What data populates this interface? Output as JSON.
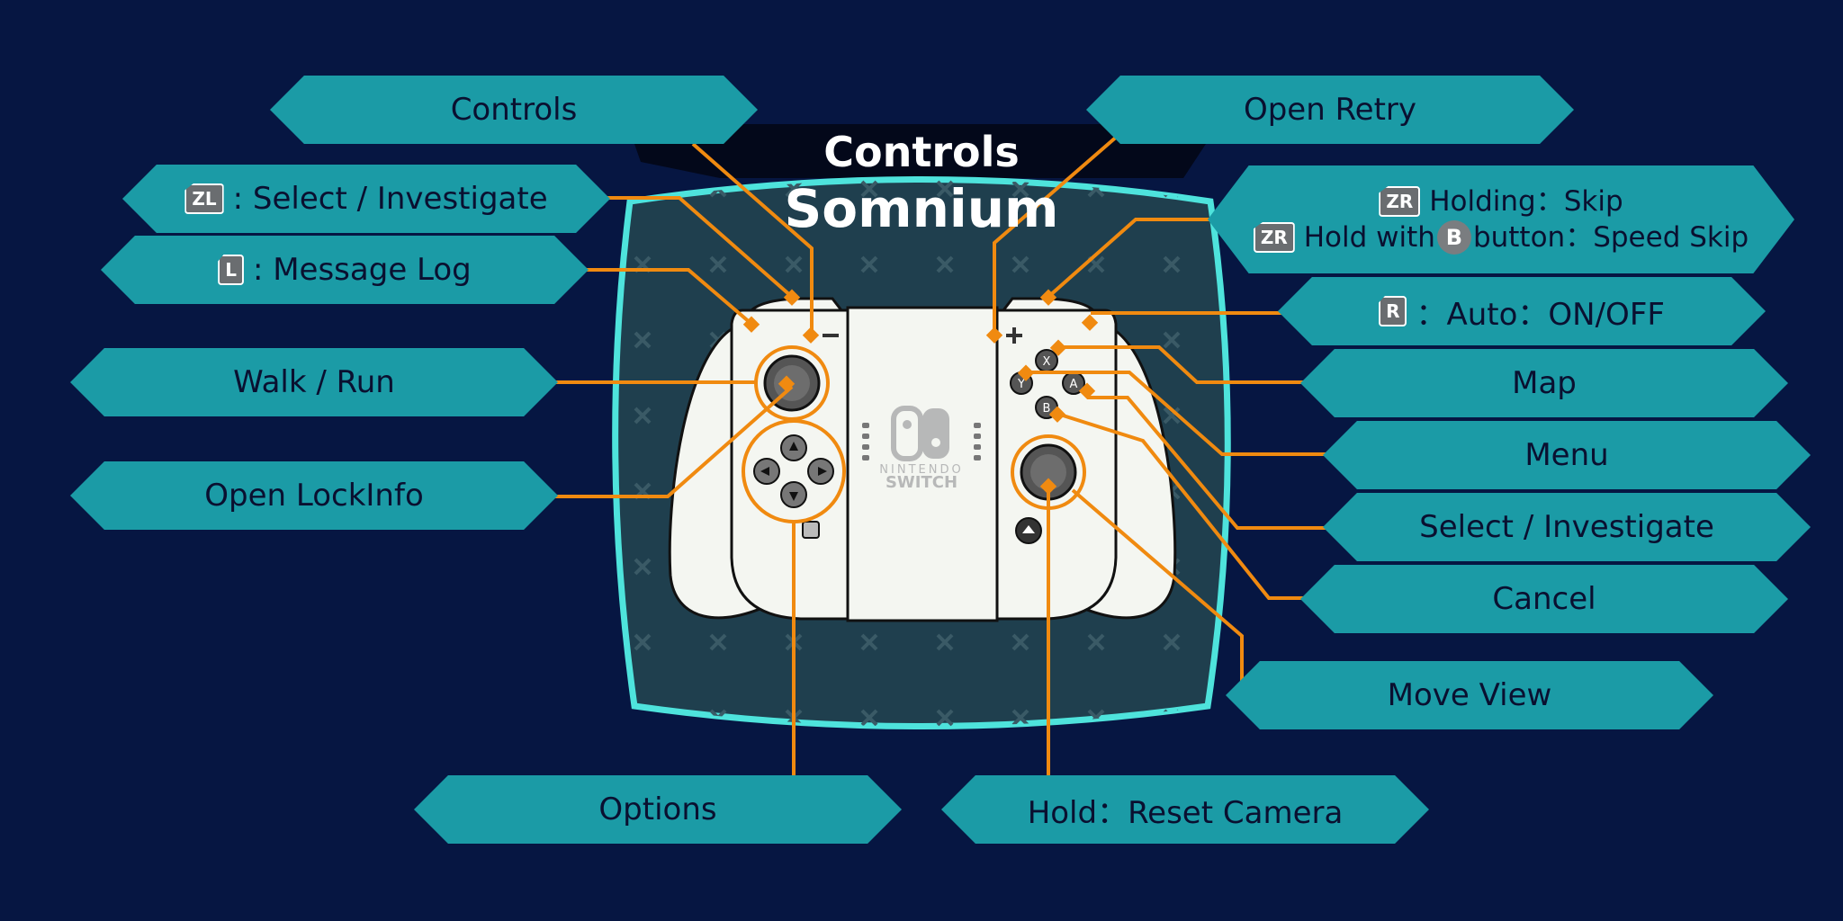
{
  "header": {
    "title": "Controls",
    "subtitle": "Somnium"
  },
  "labels": {
    "controls": "Controls",
    "zl_select": ": Select / Investigate",
    "l_log": ": Message Log",
    "walk_run": "Walk / Run",
    "open_lockinfo": "Open LockInfo",
    "options": "Options",
    "open_retry": "Open Retry",
    "zr_hold_1": "Holding：Skip",
    "zr_hold_2a": "Hold with",
    "zr_hold_2b": "button：Speed Skip",
    "r_auto": "：Auto：ON/OFF",
    "map": "Map",
    "menu": "Menu",
    "select_investigate": "Select / Investigate",
    "cancel": "Cancel",
    "move_view": "Move View",
    "reset_camera": "Hold：Reset Camera"
  },
  "keys": {
    "zl": "ZL",
    "l": "L",
    "zr": "ZR",
    "r": "R",
    "b": "B"
  },
  "controller": {
    "buttons": {
      "x": "X",
      "y": "Y",
      "a": "A",
      "b": "B"
    },
    "logo_line1": "NINTENDO",
    "logo_line2": "SWITCH",
    "minus": "−",
    "plus": "+"
  },
  "colors": {
    "background": "#061642",
    "label_fill": "#1b9ba6",
    "callout": "#f08a10",
    "panel_border": "#4ee3dc",
    "panel_fill": "#1f3f4e",
    "controller": "#f4f6f1"
  }
}
